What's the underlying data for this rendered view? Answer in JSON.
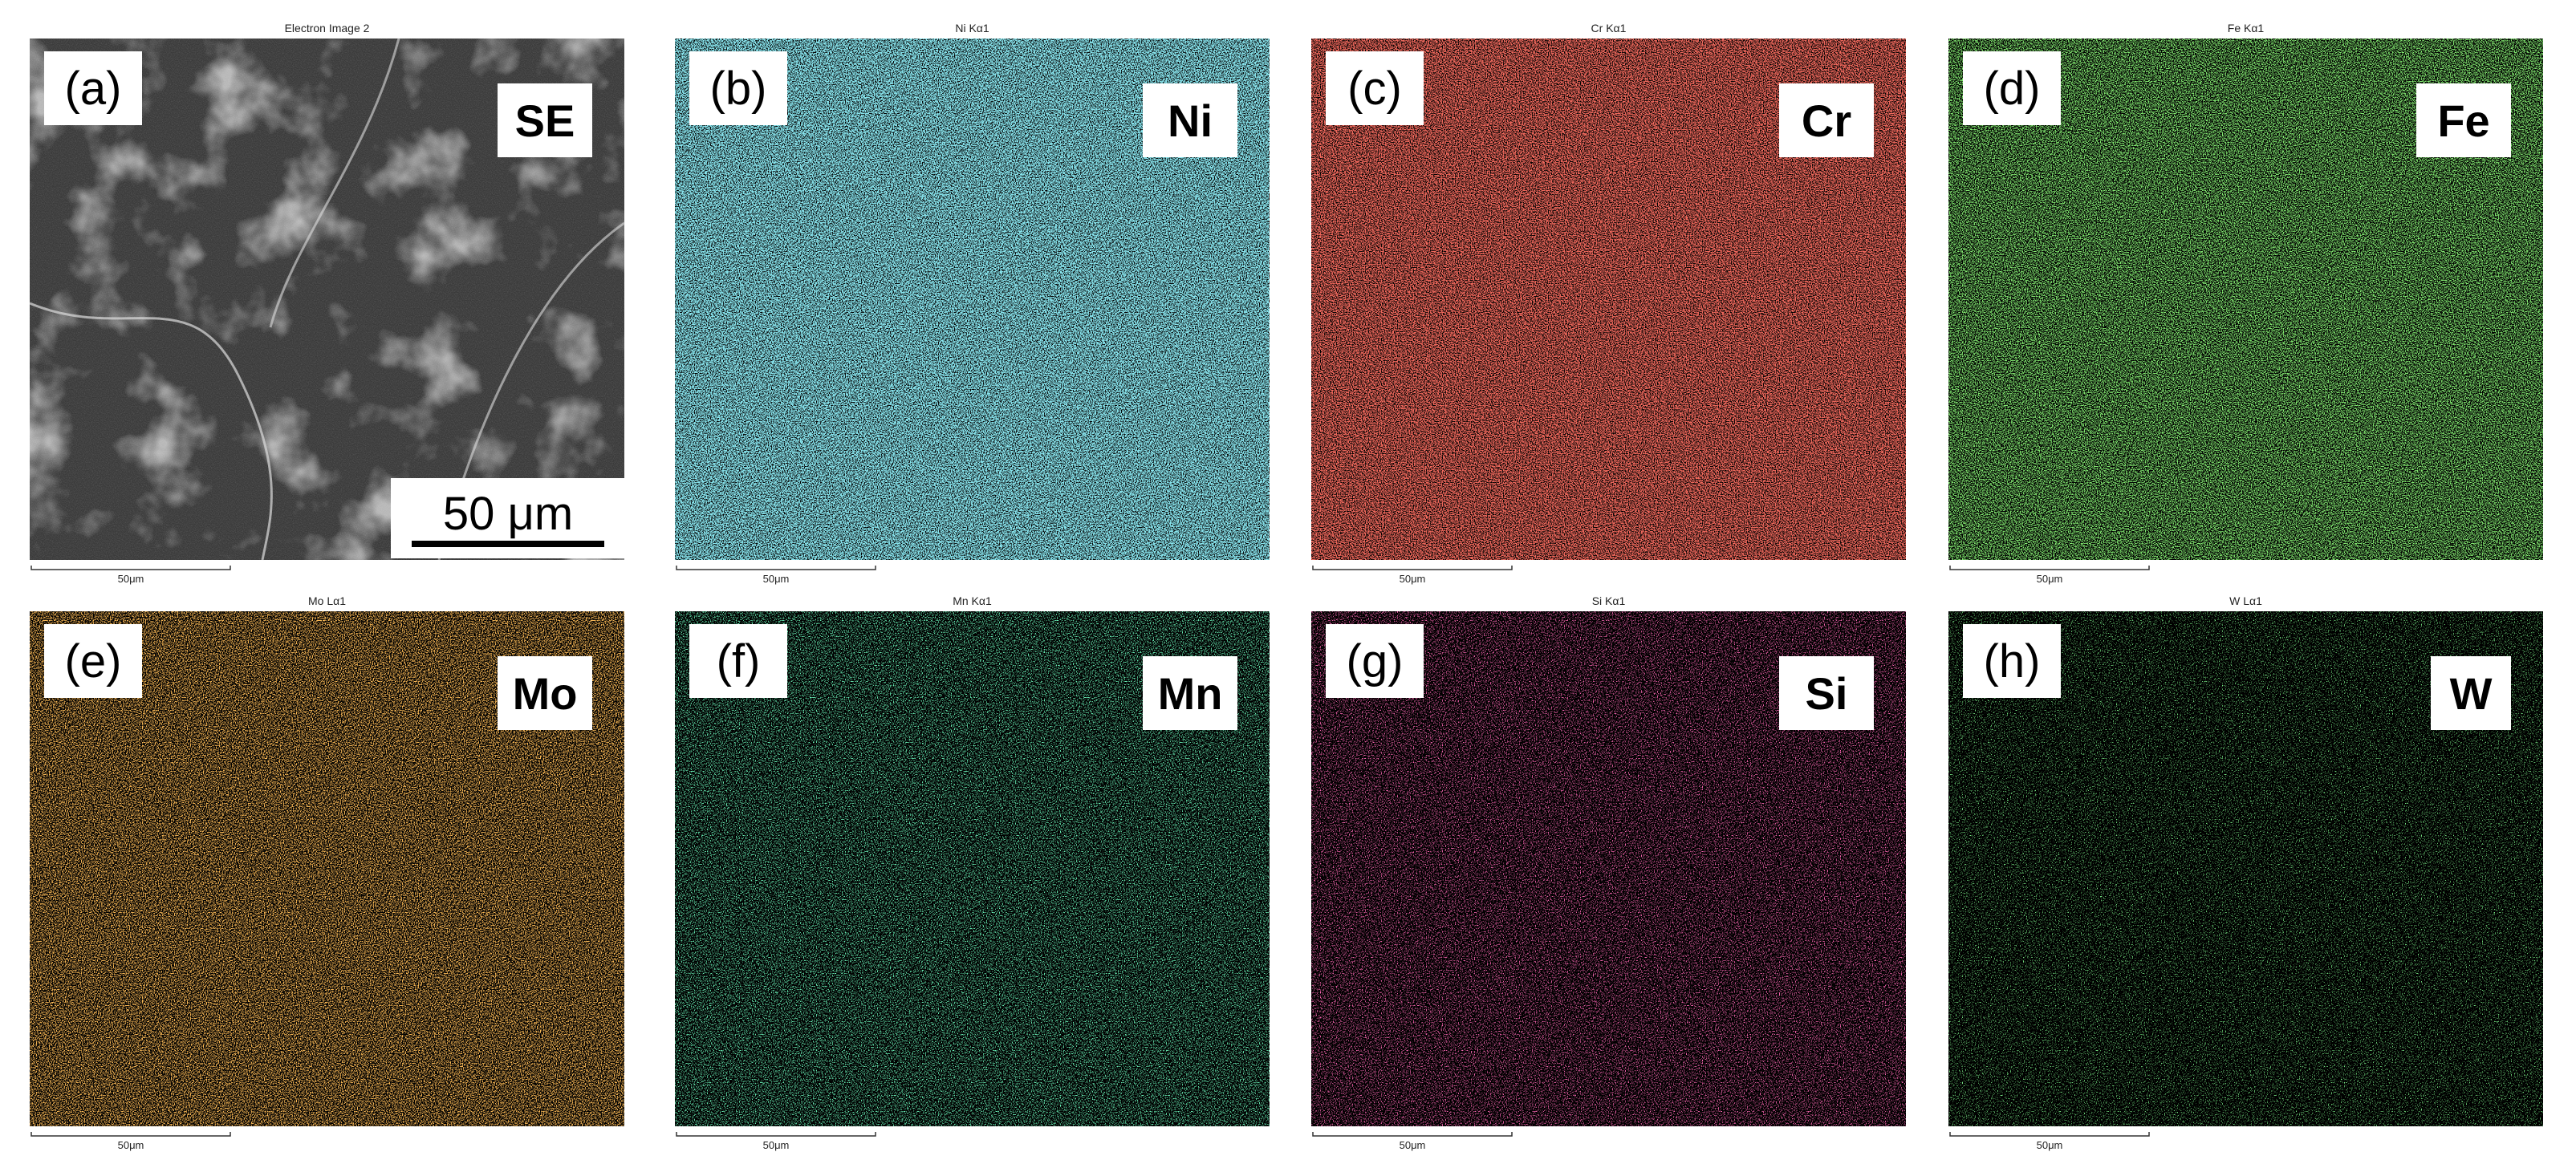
{
  "panels": [
    {
      "title": "Electron Image 2",
      "tag": "(a)",
      "element": "SE",
      "scale_label": "50μm",
      "scale_bar": "50 μm"
    },
    {
      "title": "Ni Kα1",
      "tag": "(b)",
      "element": "Ni",
      "scale_label": "50μm",
      "color": "#3fc6d8"
    },
    {
      "title": "Cr Kα1",
      "tag": "(c)",
      "element": "Cr",
      "scale_label": "50μm",
      "color": "#e0241c"
    },
    {
      "title": "Fe Kα1",
      "tag": "(d)",
      "element": "Fe",
      "scale_label": "50μm",
      "color": "#3ad02a"
    },
    {
      "title": "Mo Lα1",
      "tag": "(e)",
      "element": "Mo",
      "scale_label": "50μm",
      "color": "#f07a18"
    },
    {
      "title": "Mn Kα1",
      "tag": "(f)",
      "element": "Mn",
      "scale_label": "50μm",
      "color": "#22d070"
    },
    {
      "title": "Si Kα1",
      "tag": "(g)",
      "element": "Si",
      "scale_label": "50μm",
      "color": "#e0206a"
    },
    {
      "title": "W Lα1",
      "tag": "(h)",
      "element": "W",
      "scale_label": "50μm",
      "color": "#2ec83a"
    }
  ]
}
